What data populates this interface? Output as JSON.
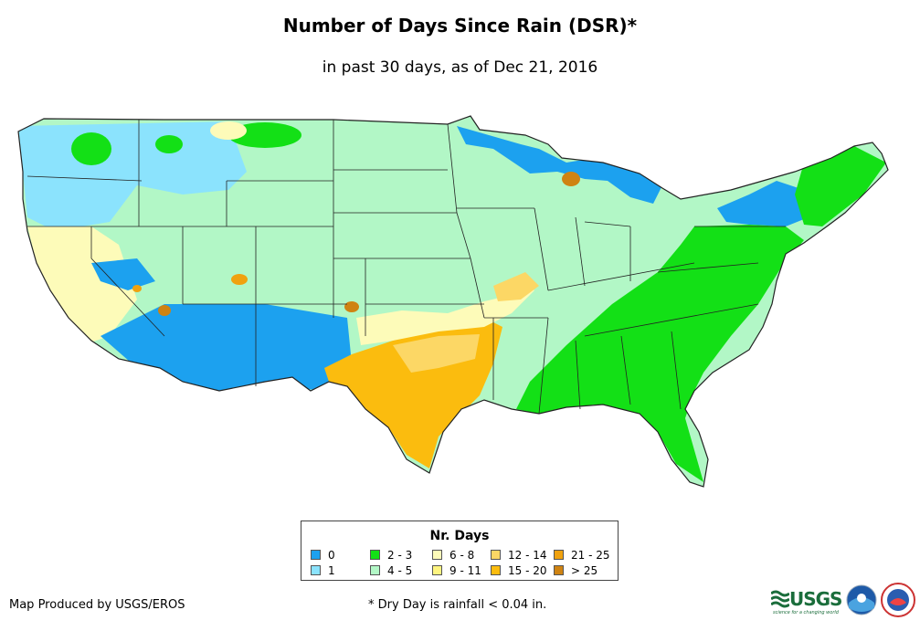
{
  "header": {
    "title": "Number of Days Since Rain (DSR)*",
    "subtitle": "in past 30 days, as of Dec 21, 2016"
  },
  "legend": {
    "title": "Nr. Days",
    "items": [
      {
        "label": "0",
        "color": "#1ca1ef"
      },
      {
        "label": "1",
        "color": "#8be3fd"
      },
      {
        "label": "2 - 3",
        "color": "#13e016"
      },
      {
        "label": "4 - 5",
        "color": "#b2f7c6"
      },
      {
        "label": "6 - 8",
        "color": "#fdfbb9"
      },
      {
        "label": "9 - 11",
        "color": "#fef480"
      },
      {
        "label": "12 - 14",
        "color": "#fcd765"
      },
      {
        "label": "15 - 20",
        "color": "#fbbc0e"
      },
      {
        "label": "21 - 25",
        "color": "#f0a20f"
      },
      {
        "label": "> 25",
        "color": "#cf8312"
      }
    ]
  },
  "footer": {
    "credit": "Map Produced by USGS/EROS",
    "footnote": "* Dry Day is rainfall < 0.04 in.",
    "logos": [
      {
        "name": "usgs-logo",
        "text": "USGS",
        "tagline": "science for a changing world"
      },
      {
        "name": "noaa-logo",
        "text": "NOAA"
      },
      {
        "name": "nws-logo",
        "text": "NWS"
      }
    ]
  }
}
